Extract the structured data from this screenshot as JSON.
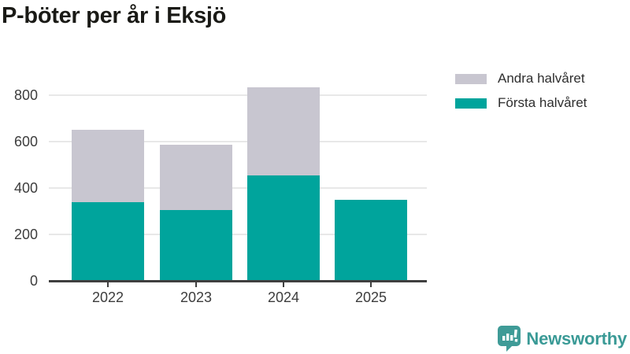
{
  "title": "P-böter per år i Eksjö",
  "colors": {
    "first_half": "#00a49c",
    "second_half": "#c8c6d0",
    "axis": "#3f3f3f",
    "grid": "#e8e8e8",
    "tick_label": "#3d3d3d",
    "title": "#1a1a16",
    "logo": "#3a9a96"
  },
  "chart_data": {
    "type": "bar",
    "stacked": true,
    "title": "P-böter per år i Eksjö",
    "categories": [
      "2022",
      "2023",
      "2024",
      "2025"
    ],
    "series": [
      {
        "name": "Första halvåret",
        "color": "#00a49c",
        "values": [
          340,
          305,
          455,
          350
        ]
      },
      {
        "name": "Andra halvåret",
        "color": "#c8c6d0",
        "values": [
          310,
          280,
          380,
          0
        ]
      }
    ],
    "totals": [
      650,
      585,
      835,
      350
    ],
    "xlabel": "",
    "ylabel": "",
    "ylim": [
      0,
      880
    ],
    "yticks": [
      0,
      200,
      400,
      600,
      800
    ],
    "grid": true,
    "legend_position": "top-right"
  },
  "legend": {
    "items": [
      {
        "label": "Andra halvåret",
        "color": "#c8c6d0"
      },
      {
        "label": "Första halvåret",
        "color": "#00a49c"
      }
    ]
  },
  "footer": {
    "brand": "Newsworthy"
  }
}
